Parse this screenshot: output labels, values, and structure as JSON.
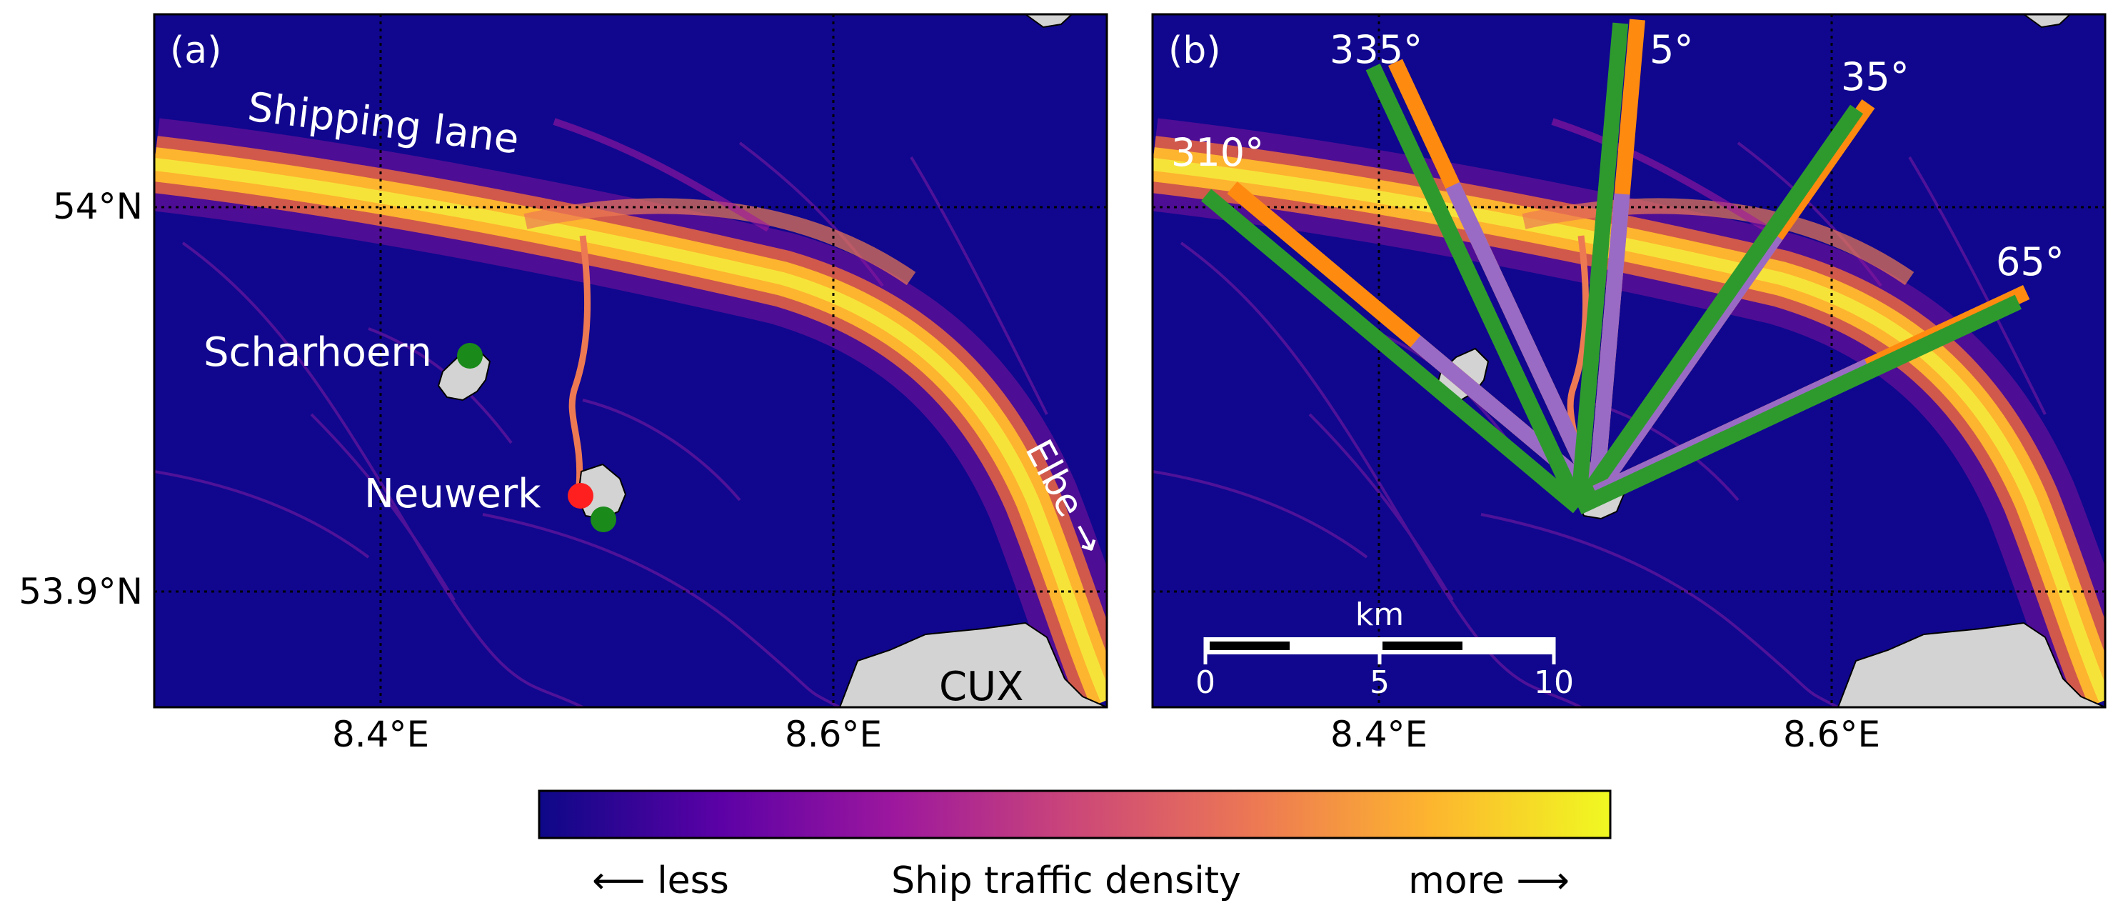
{
  "panels": {
    "a": {
      "label": "(a)",
      "annotations": {
        "shipping_lane": "Shipping lane",
        "scharhoern": "Scharhoern",
        "neuwerk": "Neuwerk",
        "elbe": "Elbe →",
        "cux": "CUX"
      }
    },
    "b": {
      "label": "(b)",
      "beams": [
        {
          "angle_label": "310°",
          "bearing_deg": 310
        },
        {
          "angle_label": "335°",
          "bearing_deg": 335
        },
        {
          "angle_label": "5°",
          "bearing_deg": 5
        },
        {
          "angle_label": "35°",
          "bearing_deg": 35
        },
        {
          "angle_label": "65°",
          "bearing_deg": 65
        }
      ],
      "scalebar": {
        "unit": "km",
        "ticks": [
          "0",
          "5",
          "10"
        ]
      }
    }
  },
  "axes": {
    "x_ticks": [
      "8.4°E",
      "8.6°E"
    ],
    "y_ticks": [
      "54°N",
      "53.9°N"
    ]
  },
  "colorbar": {
    "left_label": "⟵  less",
    "title": "Ship traffic density",
    "right_label": "more  ⟶",
    "colormap": "plasma",
    "colors": [
      "#0d0887",
      "#5c01a6",
      "#9c179e",
      "#cc4778",
      "#ed7953",
      "#fdb42f",
      "#f0f921"
    ]
  },
  "colors": {
    "ocean": "#10078e",
    "land": "#d3d3d3",
    "green_marker": "#1a8a1a",
    "red_marker": "#ff1f1f",
    "beam_green": "#2e9a2e",
    "beam_orange": "#ff8a10",
    "beam_purple": "#9a6bc4"
  }
}
